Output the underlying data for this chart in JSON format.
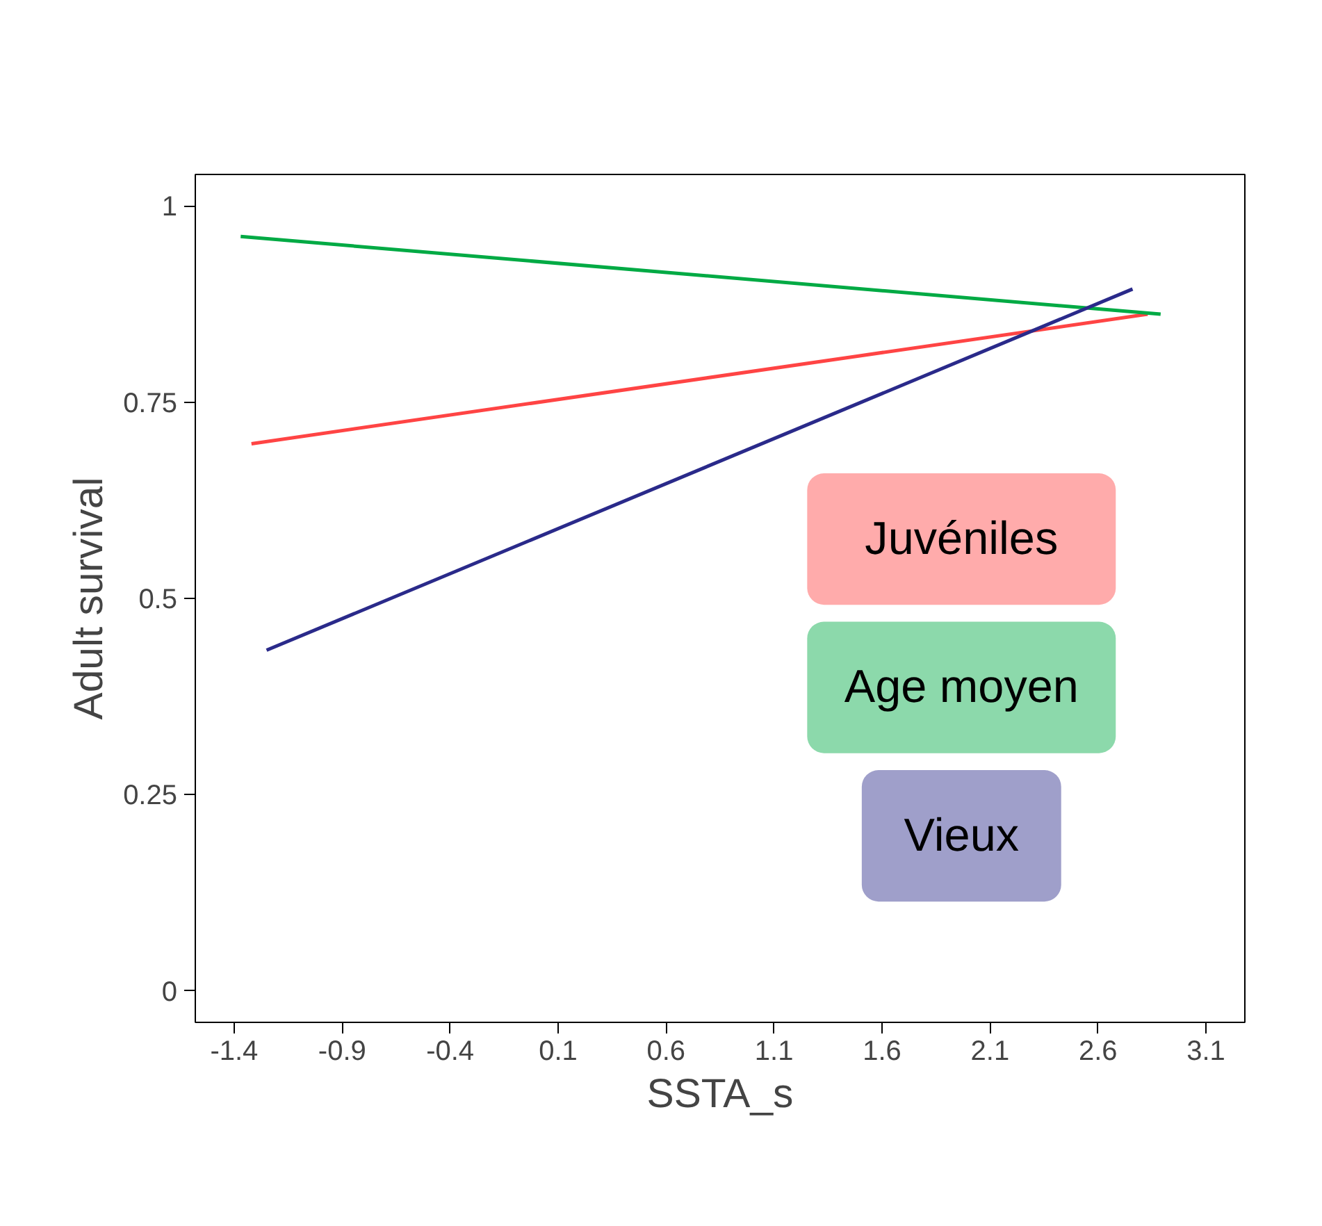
{
  "chart_data": {
    "type": "line",
    "xlabel": "SSTA_s",
    "ylabel": "Adult survival",
    "xlim": [
      -1.58,
      3.28
    ],
    "ylim": [
      -0.04,
      1.04
    ],
    "xticks": [
      -1.4,
      -0.9,
      -0.4,
      0.1,
      0.6,
      1.1,
      1.6,
      2.1,
      2.6,
      3.1
    ],
    "yticks": [
      0,
      0.25,
      0.5,
      0.75,
      1
    ],
    "grid": false,
    "legend": "bottom right",
    "series": [
      {
        "name": "Juvéniles",
        "color": "#ff4444",
        "x": [
          -1.32,
          2.83
        ],
        "values": [
          0.697,
          0.862
        ]
      },
      {
        "name": "Age moyen",
        "color": "#00aa44",
        "x": [
          -1.37,
          2.89
        ],
        "values": [
          0.961,
          0.862
        ]
      },
      {
        "name": "Vieux",
        "color": "#2a2a8a",
        "x": [
          -1.25,
          2.76
        ],
        "values": [
          0.434,
          0.894
        ]
      }
    ]
  }
}
